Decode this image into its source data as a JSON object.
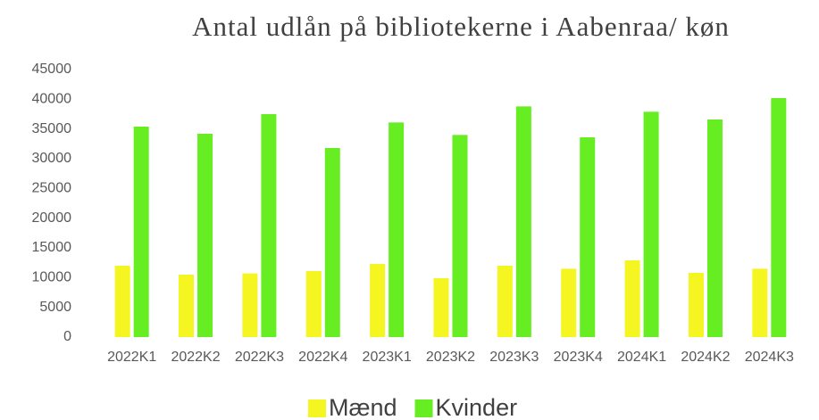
{
  "chart_data": {
    "type": "bar",
    "title": "Antal udlån på bibliotekerne i Aabenraa/ køn",
    "categories": [
      "2022K1",
      "2022K2",
      "2022K3",
      "2022K4",
      "2023K1",
      "2023K2",
      "2023K3",
      "2023K4",
      "2024K1",
      "2024K2",
      "2024K3"
    ],
    "series": [
      {
        "name": "Mænd",
        "color": "#f5f522",
        "values": [
          12000,
          10500,
          10700,
          11100,
          12300,
          9900,
          12000,
          11500,
          12900,
          10800,
          11500
        ]
      },
      {
        "name": "Kvinder",
        "color": "#66ee22",
        "values": [
          35400,
          34200,
          37500,
          31800,
          36100,
          34000,
          38800,
          33600,
          37900,
          36600,
          40200
        ]
      }
    ],
    "ylim": [
      0,
      45000
    ],
    "yticks": [
      0,
      5000,
      10000,
      15000,
      20000,
      25000,
      30000,
      35000,
      40000,
      45000
    ],
    "grid": false,
    "legend": "bottom"
  }
}
